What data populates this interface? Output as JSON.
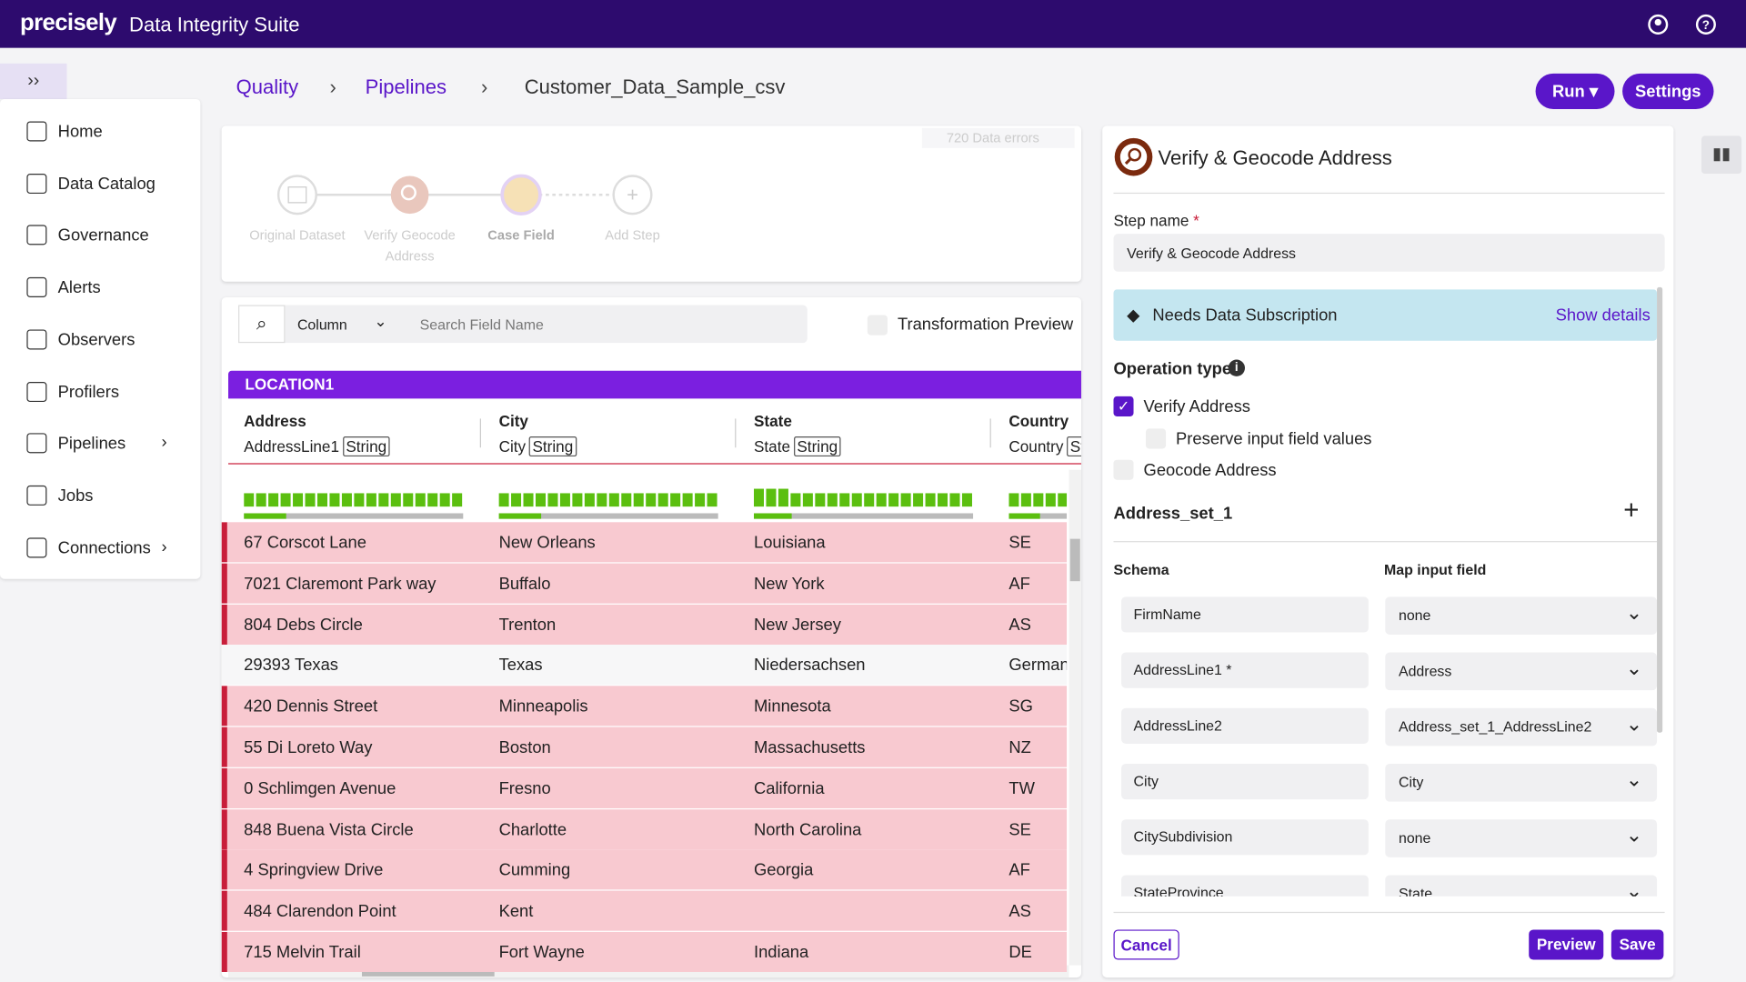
{
  "header": {
    "logo": "precisely",
    "product": "Data Integrity Suite"
  },
  "breadcrumb": [
    "Quality",
    "Pipelines",
    "Customer_Data_Sample_csv"
  ],
  "actions": {
    "run": "Run",
    "settings": "Settings"
  },
  "sidebar": [
    "Home",
    "Data Catalog",
    "Governance",
    "Alerts",
    "Observers",
    "Profilers",
    "Pipelines",
    "Jobs",
    "Connections"
  ],
  "pipeline": {
    "errors": "720 Data errors",
    "steps": [
      "Original Dataset",
      "Verify Geocode Address",
      "Case Field",
      "Add Step"
    ]
  },
  "search": {
    "scope": "Column",
    "placeholder": "Search Field Name",
    "preview": "Transformation Preview"
  },
  "table": {
    "group": "LOCATION1",
    "columns": [
      {
        "name": "Address",
        "field": "AddressLine1",
        "type": "String"
      },
      {
        "name": "City",
        "field": "City",
        "type": "String"
      },
      {
        "name": "State",
        "field": "State",
        "type": "String"
      },
      {
        "name": "Country",
        "field": "Country",
        "type": "String"
      }
    ],
    "rows": [
      {
        "cells": [
          "67 Corscot  Lane",
          "New Orleans",
          "Louisiana",
          "SE"
        ],
        "error": true
      },
      {
        "cells": [
          "7021  Claremont Park  way",
          "Buffalo",
          "New York",
          "AF"
        ],
        "error": true
      },
      {
        "cells": [
          "804 Debs   Circle",
          "Trenton",
          "New Jersey",
          "AS"
        ],
        "error": true
      },
      {
        "cells": [
          "29393 Texas",
          "Texas",
          "Niedersachsen",
          "German"
        ],
        "error": false
      },
      {
        "cells": [
          "420 Dennis        Street",
          "Minneapolis",
          "Minnesota",
          "SG"
        ],
        "error": true
      },
      {
        "cells": [
          "55 Di Loreto Way",
          "Boston",
          "Massachusetts",
          "NZ"
        ],
        "error": true
      },
      {
        "cells": [
          "0 Schlimgen Avenue",
          "Fresno",
          "California",
          "TW"
        ],
        "error": true
      },
      {
        "cells": [
          "848 Buena Vista   Circle",
          "Charlotte",
          "North Carolina",
          "SE"
        ],
        "error": true
      },
      {
        "cells": [
          "4 Springview Drive",
          "Cumming",
          "Georgia",
          "AF"
        ],
        "error": true
      },
      {
        "cells": [
          "484 Clarendon Point",
          "Kent",
          null,
          "AS"
        ],
        "error": true
      },
      {
        "cells": [
          "715 Melvin Trail",
          "Fort Wayne",
          "Indiana",
          "DE"
        ],
        "error": true
      }
    ]
  },
  "panel": {
    "title": "Verify & Geocode Address",
    "step_name_label": "Step name",
    "required": "*",
    "step_name": "Verify & Geocode Address",
    "subscription": "Needs Data Subscription",
    "show_details": "Show details",
    "operation_type": "Operation type",
    "options": [
      {
        "label": "Verify Address",
        "checked": true
      },
      {
        "label": "Preserve input field values",
        "checked": false
      },
      {
        "label": "Geocode Address",
        "checked": false
      }
    ],
    "address_set": "Address_set_1",
    "schema_header": "Schema",
    "map_header": "Map input field",
    "mappings": [
      {
        "schema": "FirmName",
        "input": "none"
      },
      {
        "schema": "AddressLine1 *",
        "input": "Address"
      },
      {
        "schema": "AddressLine2",
        "input": "Address_set_1_AddressLine2"
      },
      {
        "schema": "City",
        "input": "City"
      },
      {
        "schema": "CitySubdivision",
        "input": "none"
      },
      {
        "schema": "StateProvince",
        "input": "State"
      }
    ],
    "cancel": "Cancel",
    "preview": "Preview",
    "save": "Save"
  }
}
